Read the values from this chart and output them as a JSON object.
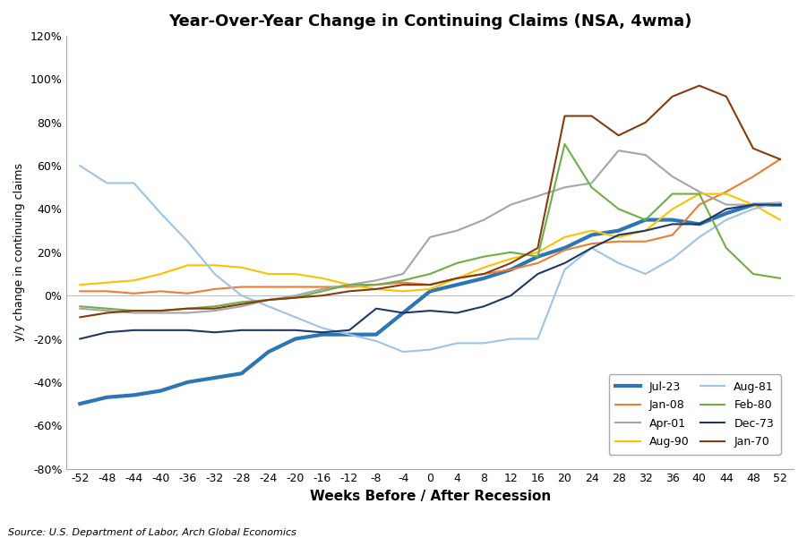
{
  "title": "Year-Over-Year Change in Continuing Claims (NSA, 4wma)",
  "xlabel": "Weeks Before / After Recession",
  "ylabel": "y/y change in continuing claims",
  "source": "Source: U.S. Department of Labor, Arch Global Economics",
  "xlim": [
    -54,
    54
  ],
  "ylim": [
    -0.8,
    1.2
  ],
  "xticks": [
    -52,
    -48,
    -44,
    -40,
    -36,
    -32,
    -28,
    -24,
    -20,
    -16,
    -12,
    -8,
    -4,
    0,
    4,
    8,
    12,
    16,
    20,
    24,
    28,
    32,
    36,
    40,
    44,
    48,
    52
  ],
  "yticks": [
    -0.8,
    -0.6,
    -0.4,
    -0.2,
    0.0,
    0.2,
    0.4,
    0.6,
    0.8,
    1.0,
    1.2
  ],
  "series": {
    "Jul-23": {
      "color": "#2E75B6",
      "linewidth": 3.0,
      "x": [
        -52,
        -48,
        -44,
        -40,
        -36,
        -32,
        -28,
        -24,
        -20,
        -16,
        -12,
        -8,
        -4,
        0,
        4,
        8,
        12,
        16,
        20,
        24,
        28,
        32,
        36,
        40,
        44,
        48,
        52
      ],
      "y": [
        -0.5,
        -0.47,
        -0.46,
        -0.44,
        -0.4,
        -0.38,
        -0.36,
        -0.26,
        -0.2,
        -0.18,
        -0.18,
        -0.18,
        -0.08,
        0.02,
        0.05,
        0.08,
        0.12,
        0.18,
        0.22,
        0.28,
        0.3,
        0.35,
        0.35,
        0.33,
        0.38,
        0.42,
        0.42
      ]
    },
    "Jan-08": {
      "color": "#ED7D31",
      "linewidth": 1.5,
      "x": [
        -52,
        -48,
        -44,
        -40,
        -36,
        -32,
        -28,
        -24,
        -20,
        -16,
        -12,
        -8,
        -4,
        0,
        4,
        8,
        12,
        16,
        20,
        24,
        28,
        32,
        36,
        40,
        44,
        48,
        52
      ],
      "y": [
        0.02,
        0.02,
        0.01,
        0.02,
        0.01,
        0.03,
        0.04,
        0.04,
        0.04,
        0.04,
        0.04,
        0.05,
        0.06,
        0.05,
        0.08,
        0.1,
        0.12,
        0.15,
        0.21,
        0.24,
        0.25,
        0.25,
        0.28,
        0.42,
        0.48,
        0.55,
        0.63
      ]
    },
    "Apr-01": {
      "color": "#A5A5A5",
      "linewidth": 1.5,
      "x": [
        -52,
        -48,
        -44,
        -40,
        -36,
        -32,
        -28,
        -24,
        -20,
        -16,
        -12,
        -8,
        -4,
        0,
        4,
        8,
        12,
        16,
        20,
        24,
        28,
        32,
        36,
        40,
        44,
        48,
        52
      ],
      "y": [
        -0.06,
        -0.07,
        -0.08,
        -0.08,
        -0.08,
        -0.07,
        -0.05,
        -0.02,
        0.0,
        0.03,
        0.05,
        0.07,
        0.1,
        0.27,
        0.3,
        0.35,
        0.42,
        0.46,
        0.5,
        0.52,
        0.67,
        0.65,
        0.55,
        0.48,
        0.42,
        0.42,
        0.43
      ]
    },
    "Aug-90": {
      "color": "#FFC000",
      "linewidth": 1.5,
      "x": [
        -52,
        -48,
        -44,
        -40,
        -36,
        -32,
        -28,
        -24,
        -20,
        -16,
        -12,
        -8,
        -4,
        0,
        4,
        8,
        12,
        16,
        20,
        24,
        28,
        32,
        36,
        40,
        44,
        48,
        52
      ],
      "y": [
        0.05,
        0.06,
        0.07,
        0.1,
        0.14,
        0.14,
        0.13,
        0.1,
        0.1,
        0.08,
        0.05,
        0.03,
        0.02,
        0.03,
        0.08,
        0.13,
        0.17,
        0.2,
        0.27,
        0.3,
        0.27,
        0.3,
        0.4,
        0.47,
        0.47,
        0.42,
        0.35
      ]
    },
    "Aug-81": {
      "color": "#9DC3E6",
      "linewidth": 1.5,
      "x": [
        -52,
        -48,
        -44,
        -40,
        -36,
        -32,
        -28,
        -24,
        -20,
        -16,
        -12,
        -8,
        -4,
        0,
        4,
        8,
        12,
        16,
        20,
        24,
        28,
        32,
        36,
        40,
        44,
        48,
        52
      ],
      "y": [
        0.6,
        0.52,
        0.52,
        0.38,
        0.25,
        0.1,
        0.0,
        -0.05,
        -0.1,
        -0.15,
        -0.18,
        -0.21,
        -0.26,
        -0.25,
        -0.22,
        -0.22,
        -0.2,
        -0.2,
        0.12,
        0.22,
        0.15,
        0.1,
        0.17,
        0.27,
        0.35,
        0.4,
        0.43
      ]
    },
    "Feb-80": {
      "color": "#70AD47",
      "linewidth": 1.5,
      "x": [
        -52,
        -48,
        -44,
        -40,
        -36,
        -32,
        -28,
        -24,
        -20,
        -16,
        -12,
        -8,
        -4,
        0,
        4,
        8,
        12,
        16,
        20,
        24,
        28,
        32,
        36,
        40,
        44,
        48,
        52
      ],
      "y": [
        -0.05,
        -0.06,
        -0.07,
        -0.07,
        -0.06,
        -0.05,
        -0.03,
        -0.02,
        -0.01,
        0.02,
        0.05,
        0.05,
        0.07,
        0.1,
        0.15,
        0.18,
        0.2,
        0.18,
        0.7,
        0.5,
        0.4,
        0.35,
        0.47,
        0.47,
        0.22,
        0.1,
        0.08
      ]
    },
    "Dec-73": {
      "color": "#1F3864",
      "linewidth": 1.5,
      "x": [
        -52,
        -48,
        -44,
        -40,
        -36,
        -32,
        -28,
        -24,
        -20,
        -16,
        -12,
        -8,
        -4,
        0,
        4,
        8,
        12,
        16,
        20,
        24,
        28,
        32,
        36,
        40,
        44,
        48,
        52
      ],
      "y": [
        -0.2,
        -0.17,
        -0.16,
        -0.16,
        -0.16,
        -0.17,
        -0.16,
        -0.16,
        -0.16,
        -0.17,
        -0.16,
        -0.06,
        -0.08,
        -0.07,
        -0.08,
        -0.05,
        0.0,
        0.1,
        0.15,
        0.22,
        0.28,
        0.3,
        0.33,
        0.33,
        0.4,
        0.42,
        0.42
      ]
    },
    "Jan-70": {
      "color": "#843C0C",
      "linewidth": 1.5,
      "x": [
        -52,
        -48,
        -44,
        -40,
        -36,
        -32,
        -28,
        -24,
        -20,
        -16,
        -12,
        -8,
        -4,
        0,
        4,
        8,
        12,
        16,
        20,
        24,
        28,
        32,
        36,
        40,
        44,
        48,
        52
      ],
      "y": [
        -0.1,
        -0.08,
        -0.07,
        -0.07,
        -0.06,
        -0.06,
        -0.04,
        -0.02,
        -0.01,
        0.0,
        0.02,
        0.03,
        0.05,
        0.05,
        0.08,
        0.1,
        0.15,
        0.22,
        0.83,
        0.83,
        0.74,
        0.8,
        0.92,
        0.97,
        0.92,
        0.68,
        0.63
      ]
    }
  },
  "legend_col1": [
    "Jul-23",
    "Apr-01",
    "Aug-81",
    "Dec-73"
  ],
  "legend_col2": [
    "Jan-08",
    "Aug-90",
    "Feb-80",
    "Jan-70"
  ],
  "background_color": "#FFFFFF",
  "grid_color": "#C0C0C0",
  "spine_color": "#AAAAAA"
}
